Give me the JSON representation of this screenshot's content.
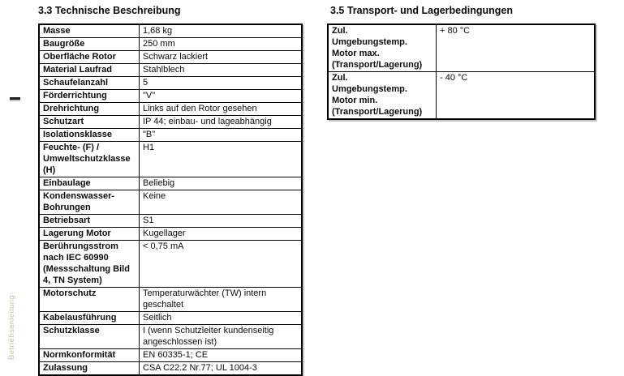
{
  "colors": {
    "table_border": "#000000",
    "watermark_text": "#c7c3ae"
  },
  "sidebar": {
    "vertical_text": "Betriebsanleitung"
  },
  "sections": {
    "left": {
      "title": "3.3 Technische Beschreibung",
      "rows": [
        {
          "label": "Masse",
          "value": "1,68 kg"
        },
        {
          "label": "Baugröße",
          "value": "250 mm"
        },
        {
          "label": "Oberfläche Rotor",
          "value": "Schwarz lackiert"
        },
        {
          "label": "Material Laufrad",
          "value": "Stahlblech"
        },
        {
          "label": "Schaufelanzahl",
          "value": "5"
        },
        {
          "label": "Förderrichtung",
          "value": "\"V\""
        },
        {
          "label": "Drehrichtung",
          "value": "Links auf den Rotor gesehen"
        },
        {
          "label": "Schutzart",
          "value": "IP 44; einbau- und lageabhängig"
        },
        {
          "label": "Isolationsklasse",
          "value": "\"B\""
        },
        {
          "label": "Feuchte- (F) /\nUmweltschutzklasse\n(H)",
          "value": "H1"
        },
        {
          "label": "Einbaulage",
          "value": "Beliebig"
        },
        {
          "label": "Kondenswasser-\nBohrungen",
          "value": "Keine"
        },
        {
          "label": "Betriebsart",
          "value": "S1"
        },
        {
          "label": "Lagerung Motor",
          "value": "Kugellager"
        },
        {
          "label": "Berührungsstrom\nnach IEC 60990\n(Messschaltung Bild\n4, TN System)",
          "value": "< 0,75 mA"
        },
        {
          "label": "Motorschutz",
          "value": "Temperaturwächter (TW) intern geschaltet"
        },
        {
          "label": "Kabelausführung",
          "value": "Seitlich"
        },
        {
          "label": "Schutzklasse",
          "value": "I (wenn Schutzleiter kundenseitig\nangeschlossen ist)"
        },
        {
          "label": "Normkonformität",
          "value": "EN 60335-1; CE"
        },
        {
          "label": "Zulassung",
          "value": "CSA C22.2 Nr.77; UL 1004-3"
        }
      ]
    },
    "right": {
      "title": "3.5 Transport- und Lagerbedingungen",
      "rows": [
        {
          "label": "Zul.\nUmgebungstemp.\nMotor max.\n(Transport/Lagerung)",
          "value": "+ 80 °C"
        },
        {
          "label": "Zul.\nUmgebungstemp.\nMotor min.\n(Transport/Lagerung)",
          "value": "- 40 °C"
        }
      ]
    }
  }
}
